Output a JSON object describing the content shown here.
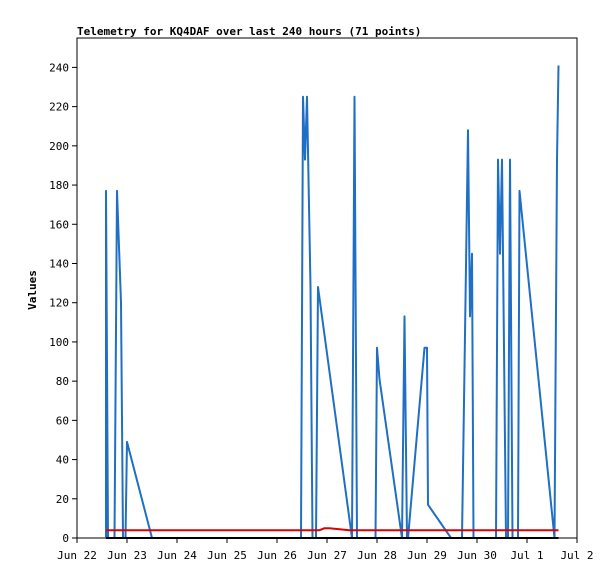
{
  "chart_data": {
    "type": "line",
    "title": "Telemetry for KQ4DAF over last 240 hours (71 points)",
    "xlabel": "",
    "ylabel": "Values",
    "xlim": [
      22,
      32
    ],
    "ylim": [
      0,
      255
    ],
    "x_ticks": [
      {
        "x": 22,
        "label": "Jun 22"
      },
      {
        "x": 23,
        "label": "Jun 23"
      },
      {
        "x": 24,
        "label": "Jun 24"
      },
      {
        "x": 25,
        "label": "Jun 25"
      },
      {
        "x": 26,
        "label": "Jun 26"
      },
      {
        "x": 27,
        "label": "Jun 27"
      },
      {
        "x": 28,
        "label": "Jun 28"
      },
      {
        "x": 29,
        "label": "Jun 29"
      },
      {
        "x": 30,
        "label": "Jun 30"
      },
      {
        "x": 31,
        "label": "Jul 1"
      },
      {
        "x": 32,
        "label": "Jul 2"
      }
    ],
    "y_ticks": [
      0,
      20,
      40,
      60,
      80,
      100,
      120,
      140,
      160,
      180,
      200,
      220,
      240
    ],
    "grid": false,
    "colors": {
      "blue": "#1f6fc5",
      "red": "#dd0000",
      "black": "#000000"
    },
    "series": [
      {
        "color": "#1f6fc5",
        "points": [
          [
            22.58,
            0
          ],
          [
            22.58,
            177
          ],
          [
            22.62,
            0
          ],
          [
            22.75,
            0
          ],
          [
            22.8,
            177
          ],
          [
            22.88,
            120
          ],
          [
            22.92,
            0
          ],
          [
            22.97,
            0
          ],
          [
            23.0,
            49
          ],
          [
            23.5,
            0
          ],
          [
            26.48,
            0
          ],
          [
            26.52,
            225
          ],
          [
            26.56,
            193
          ],
          [
            26.6,
            225
          ],
          [
            26.67,
            128
          ],
          [
            26.71,
            0
          ],
          [
            26.78,
            0
          ],
          [
            26.82,
            128
          ],
          [
            27.5,
            0
          ],
          [
            27.55,
            225
          ],
          [
            27.6,
            0
          ],
          [
            27.97,
            0
          ],
          [
            28.0,
            97
          ],
          [
            28.05,
            81
          ],
          [
            28.5,
            0
          ],
          [
            28.55,
            113
          ],
          [
            28.6,
            0
          ],
          [
            28.62,
            0
          ],
          [
            28.95,
            97
          ],
          [
            29.0,
            97
          ],
          [
            29.02,
            17
          ],
          [
            29.48,
            0
          ],
          [
            29.7,
            0
          ],
          [
            29.82,
            208
          ],
          [
            29.86,
            113
          ],
          [
            29.9,
            145
          ],
          [
            29.93,
            0
          ],
          [
            30.38,
            0
          ],
          [
            30.42,
            193
          ],
          [
            30.46,
            145
          ],
          [
            30.5,
            193
          ],
          [
            30.54,
            97
          ],
          [
            30.58,
            0
          ],
          [
            30.62,
            0
          ],
          [
            30.66,
            193
          ],
          [
            30.71,
            0
          ],
          [
            30.82,
            0
          ],
          [
            30.85,
            177
          ],
          [
            31.55,
            0
          ],
          [
            31.6,
            193
          ],
          [
            31.63,
            241
          ]
        ]
      },
      {
        "color": "#dd0000",
        "points": [
          [
            22.58,
            4
          ],
          [
            26.85,
            4
          ],
          [
            26.95,
            5
          ],
          [
            27.05,
            5
          ],
          [
            27.45,
            4
          ],
          [
            31.63,
            4
          ]
        ]
      },
      {
        "color": "#000000",
        "points": [
          [
            22.58,
            0
          ],
          [
            31.63,
            0
          ]
        ]
      }
    ]
  }
}
